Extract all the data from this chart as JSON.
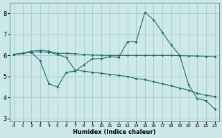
{
  "xlabel": "Humidex (Indice chaleur)",
  "xlim": [
    -0.5,
    23.5
  ],
  "ylim": [
    2.85,
    8.5
  ],
  "yticks": [
    3,
    4,
    5,
    6,
    7,
    8
  ],
  "xticks": [
    0,
    1,
    2,
    3,
    4,
    5,
    6,
    7,
    8,
    9,
    10,
    11,
    12,
    13,
    14,
    15,
    16,
    17,
    18,
    19,
    20,
    21,
    22,
    23
  ],
  "bg": "#cce8e8",
  "gc": "#a0c4c4",
  "lc": "#1a6b6b",
  "line1_x": [
    0,
    1,
    2,
    3,
    4,
    5,
    6,
    7,
    8,
    9,
    10,
    11,
    12,
    13,
    14,
    15,
    16,
    17,
    18,
    19,
    20,
    21,
    22,
    23
  ],
  "line1_y": [
    6.05,
    6.1,
    6.2,
    6.25,
    6.2,
    6.1,
    6.1,
    6.08,
    6.05,
    6.02,
    6.01,
    6.0,
    6.0,
    6.0,
    6.0,
    6.0,
    6.0,
    6.0,
    6.0,
    5.99,
    5.98,
    5.97,
    5.96,
    5.95
  ],
  "line2_x": [
    0,
    1,
    2,
    3,
    4,
    5,
    6,
    7,
    8,
    9,
    10,
    11,
    12,
    13,
    14,
    15,
    16,
    17,
    18,
    19,
    20,
    21,
    22,
    23
  ],
  "line2_y": [
    6.05,
    6.1,
    6.15,
    5.75,
    4.65,
    4.5,
    5.2,
    5.25,
    5.55,
    5.85,
    5.85,
    5.95,
    5.9,
    6.65,
    6.65,
    8.05,
    7.7,
    7.1,
    6.5,
    6.0,
    4.6,
    3.95,
    3.85,
    3.45
  ],
  "line3_x": [
    0,
    1,
    2,
    3,
    4,
    5,
    6,
    7,
    8,
    9,
    10,
    11,
    12,
    13,
    14,
    15,
    16,
    17,
    18,
    19,
    20,
    21,
    22,
    23
  ],
  "line3_y": [
    6.05,
    6.1,
    6.15,
    6.18,
    6.15,
    6.05,
    5.9,
    5.3,
    5.25,
    5.2,
    5.15,
    5.1,
    5.05,
    5.0,
    4.9,
    4.85,
    4.75,
    4.65,
    4.55,
    4.45,
    4.35,
    4.2,
    4.1,
    4.05
  ]
}
